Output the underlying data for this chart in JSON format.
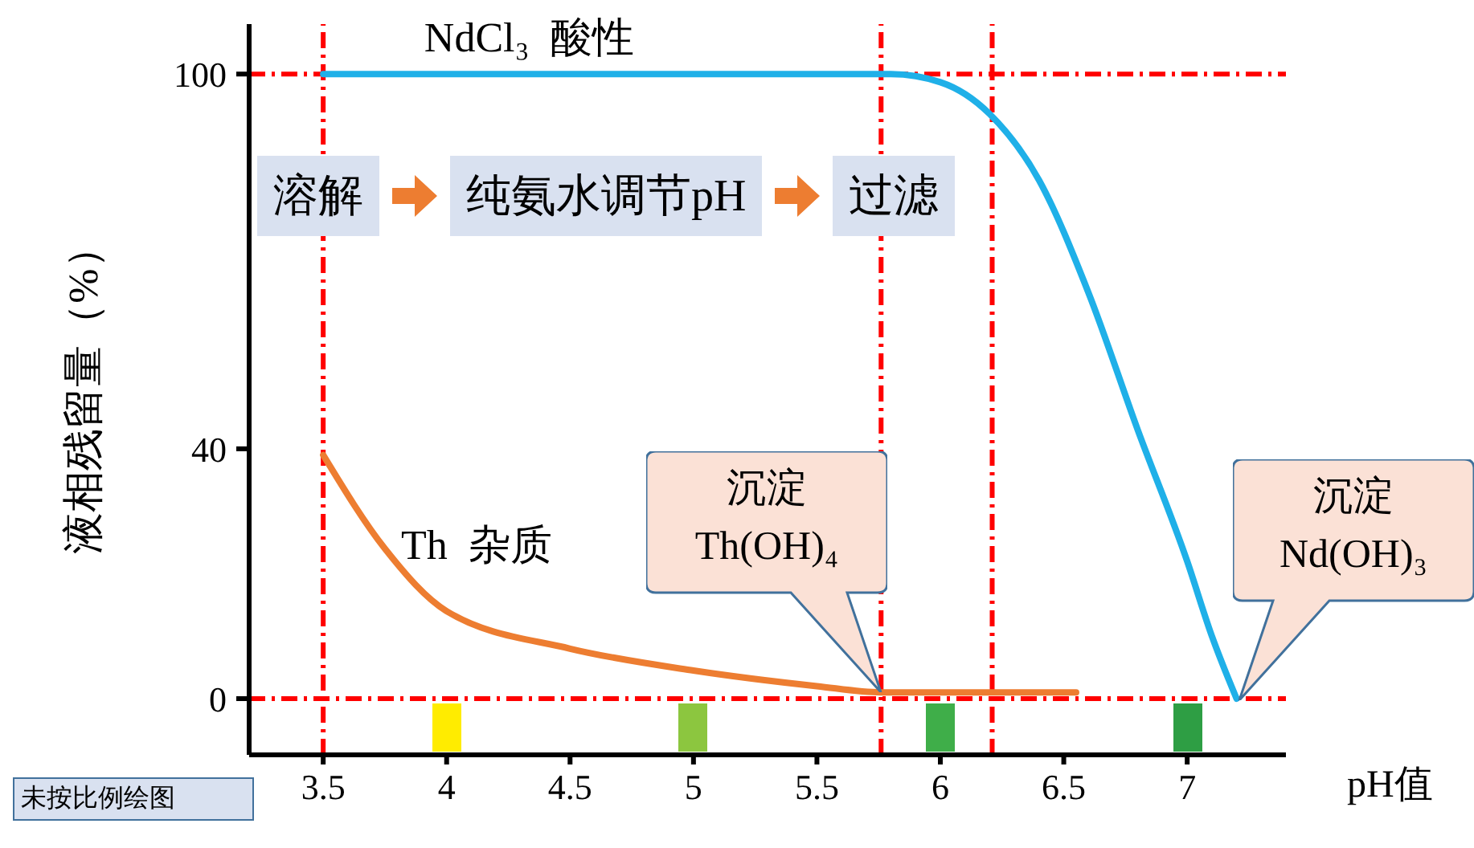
{
  "chart_data": {
    "type": "line",
    "xlabel": "pH值",
    "ylabel": "液相残留量（%）",
    "xlim": [
      3.2,
      7.4
    ],
    "xticks": [
      3.5,
      4,
      4.5,
      5,
      5.5,
      6,
      6.5,
      7
    ],
    "ylim": [
      -9,
      108
    ],
    "yticks": [
      0,
      40,
      100
    ],
    "grid": false,
    "legend": false,
    "marker": "none",
    "line_style": "solid",
    "series": [
      {
        "color": "#1fb0e8",
        "x": [
          3.5,
          4,
          4.5,
          5,
          5.5,
          5.8,
          6,
          6.2,
          6.4,
          6.6,
          6.8,
          7,
          7.1,
          7.2
        ],
        "values": [
          100,
          100,
          100,
          100,
          100,
          100,
          98.7,
          93.6,
          83,
          65,
          43,
          22,
          10,
          0
        ]
      },
      {
        "color": "#ed7d31",
        "x": [
          3.5,
          3.75,
          4,
          4.5,
          5,
          5.5,
          5.76,
          6,
          6.55
        ],
        "values": [
          39,
          24,
          14,
          8,
          4.5,
          2,
          1,
          1,
          1
        ]
      }
    ],
    "ref_lines": [
      {
        "axis": "x",
        "value": 3.5,
        "color": "#ff0000",
        "line_style": "dashed"
      },
      {
        "axis": "x",
        "value": 5.76,
        "color": "#ff0000",
        "line_style": "dashed"
      },
      {
        "axis": "x",
        "value": 6.21,
        "color": "#ff0000",
        "line_style": "dashed"
      },
      {
        "axis": "y",
        "value": 0,
        "color": "#ff0000",
        "line_style": "dashed"
      },
      {
        "axis": "y",
        "value": 100,
        "color": "#ff0000",
        "line_style": "dashed"
      }
    ],
    "annotations": [
      {
        "text": "NdCl₃  酸性",
        "x": 4.3,
        "y": 100
      },
      {
        "text": "Th  杂质",
        "x": 3.75,
        "y": 24
      },
      "沉淀\nTh(OH)₄",
      "沉淀\nNd(OH)₃",
      "溶解",
      "纯氨水调节pH",
      "过滤",
      "未按比例绘图"
    ]
  }
}
